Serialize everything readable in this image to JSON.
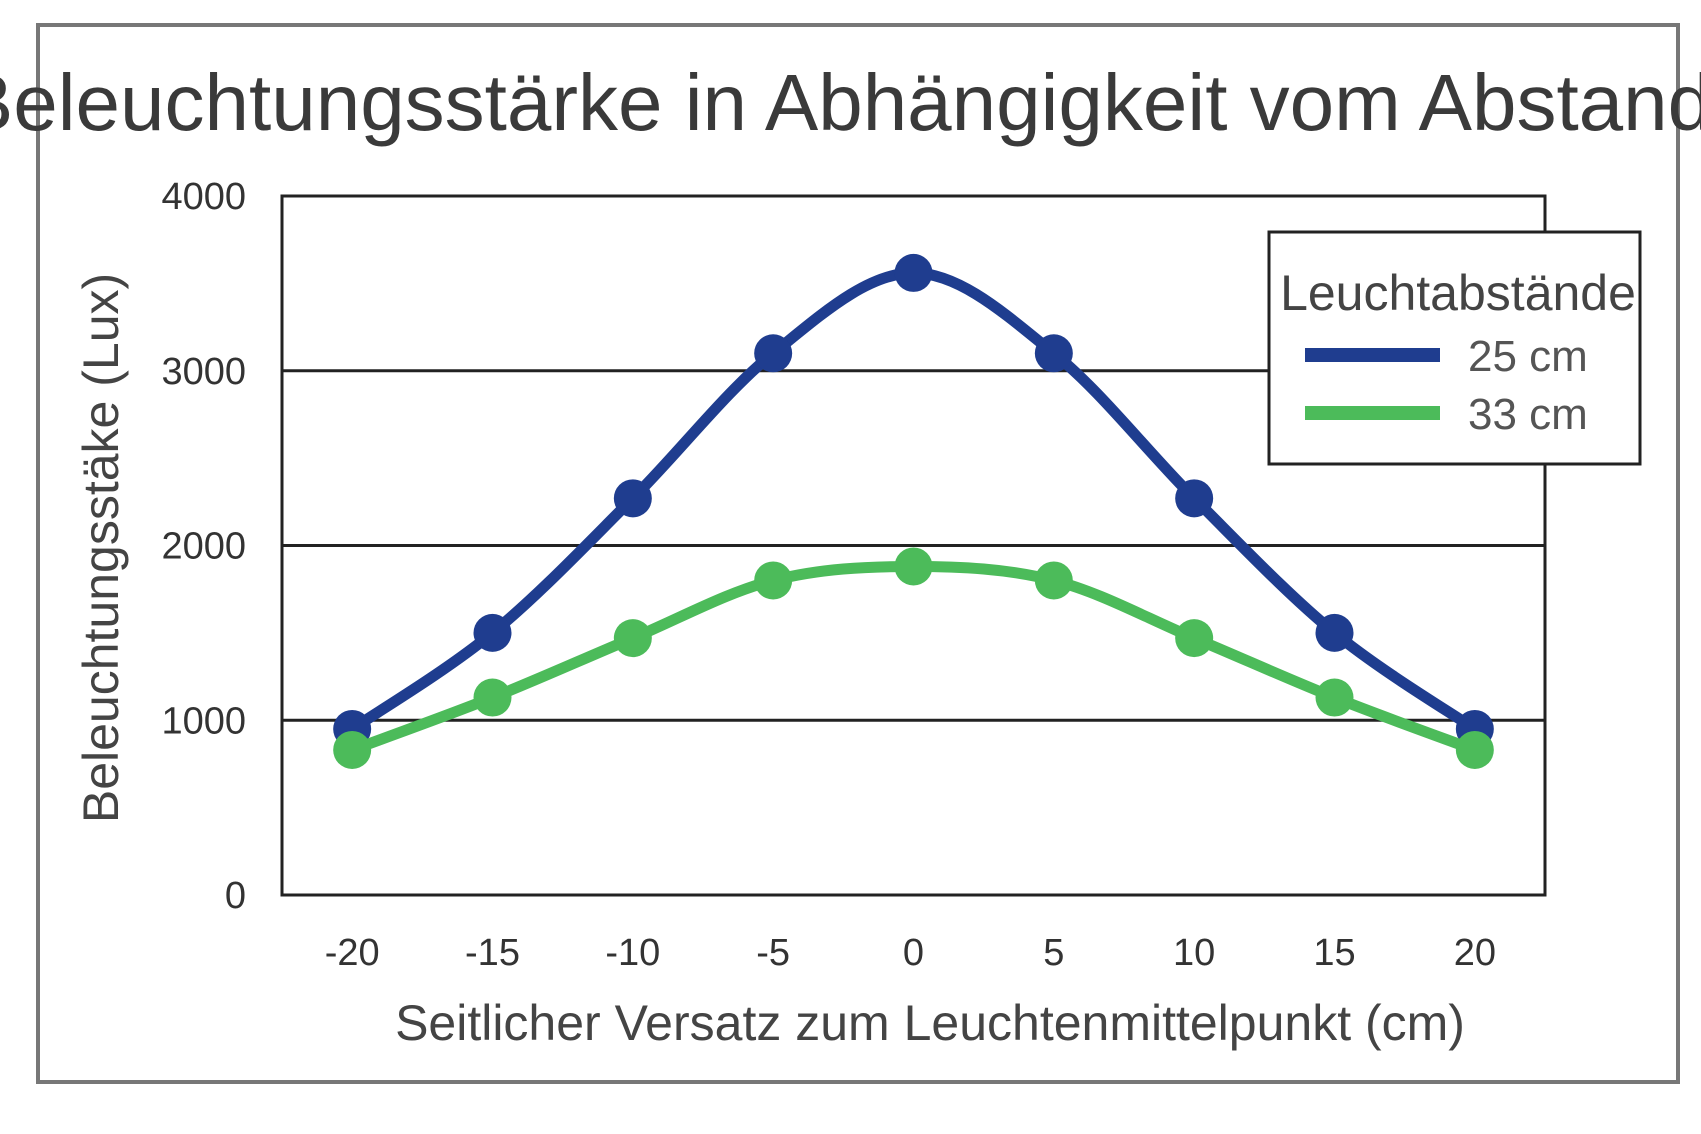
{
  "chart_data": {
    "type": "line",
    "title": "Beleuchtungsstärke in Abhängigkeit vom Abstand",
    "xlabel": "Seitlicher Versatz zum Leuchtenmittelpunkt (cm)",
    "ylabel": "Beleuchtungsstäke (Lux)",
    "x": [
      -20,
      -15,
      -10,
      -5,
      0,
      5,
      10,
      15,
      20
    ],
    "x_tick_labels": [
      "-20",
      "-15",
      "-10",
      "-5",
      "0",
      "5",
      "10",
      "15",
      "20"
    ],
    "y_ticks": [
      0,
      1000,
      2000,
      3000,
      4000
    ],
    "y_tick_labels": [
      "0",
      "1000",
      "2000",
      "3000",
      "4000"
    ],
    "ylim": [
      0,
      4000
    ],
    "xlim": [
      -22.5,
      22.5
    ],
    "grid": "horizontal",
    "legend_position": "top-right",
    "legend_title": "Leuchtabstände",
    "series": [
      {
        "name": "25 cm",
        "color": "#1f3d8f",
        "values": [
          950,
          1500,
          2270,
          3100,
          3560,
          3100,
          2270,
          1500,
          950
        ]
      },
      {
        "name": "33 cm",
        "color": "#4cbb5a",
        "values": [
          830,
          1130,
          1470,
          1800,
          1880,
          1800,
          1470,
          1130,
          830
        ]
      }
    ]
  }
}
